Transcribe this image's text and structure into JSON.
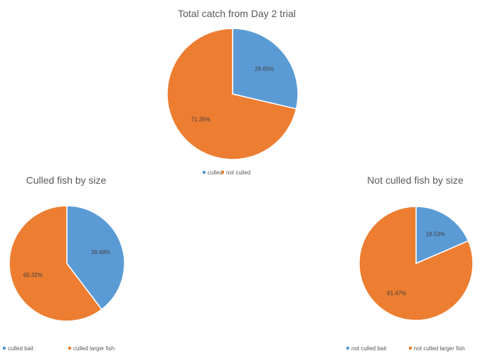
{
  "colors": {
    "blue": "#5B9BD5",
    "orange": "#ED7D31",
    "text": "#595959",
    "label": "#404040"
  },
  "chart_data": [
    {
      "type": "pie",
      "title": "Total catch from Day 2 trial",
      "slices": [
        {
          "label": "culled",
          "value": 28.65,
          "display": "28.65%",
          "color": "#5B9BD5"
        },
        {
          "label": "not culled",
          "value": 71.35,
          "display": "71.35%",
          "color": "#ED7D31"
        }
      ],
      "legend_position": "bottom"
    },
    {
      "type": "pie",
      "title": "Culled fish by size",
      "slices": [
        {
          "label": "culled bait",
          "value": 39.68,
          "display": "39.68%",
          "color": "#5B9BD5"
        },
        {
          "label": "culled larger fish",
          "value": 60.32,
          "display": "60.32%",
          "color": "#ED7D31"
        }
      ],
      "legend_position": "bottom"
    },
    {
      "type": "pie",
      "title": "Not culled fish by size",
      "slices": [
        {
          "label": "not culled bait",
          "value": 18.53,
          "display": "18.53%",
          "color": "#5B9BD5"
        },
        {
          "label": "not culled larger fish",
          "value": 81.47,
          "display": "81.47%",
          "color": "#ED7D31"
        }
      ],
      "legend_position": "bottom"
    }
  ]
}
